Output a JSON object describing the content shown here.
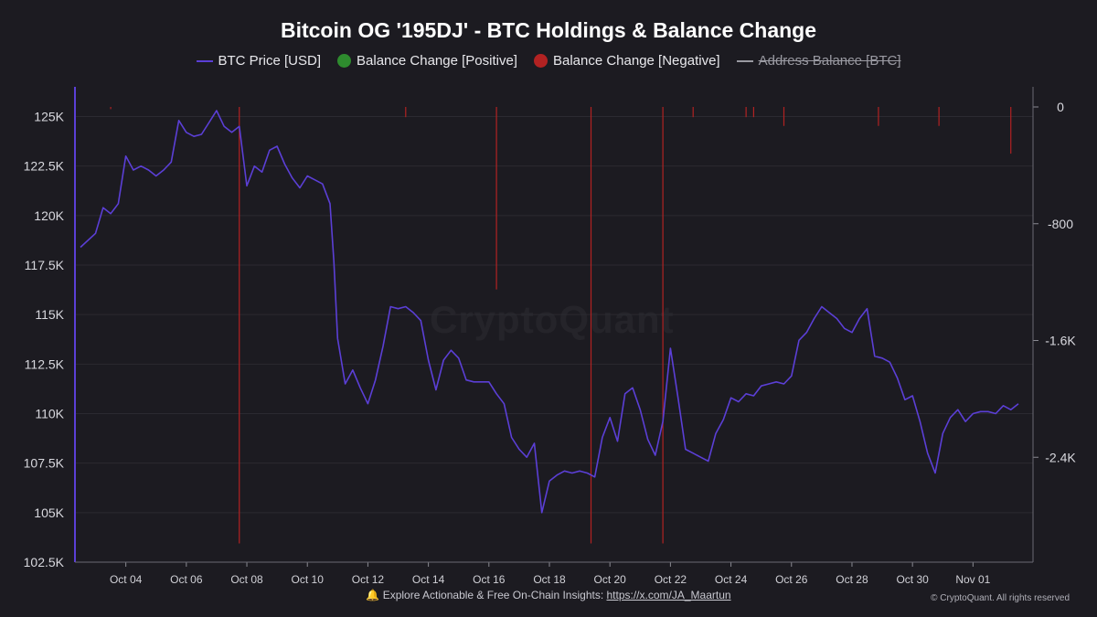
{
  "chart_data": {
    "type": "line",
    "title": "Bitcoin OG '195DJ' - BTC Holdings & Balance Change",
    "legend": [
      {
        "name": "BTC Price [USD]",
        "color": "#5b3fd6",
        "style": "line",
        "enabled": true
      },
      {
        "name": "Balance Change [Positive]",
        "color": "#2e8b2e",
        "style": "dot",
        "enabled": true
      },
      {
        "name": "Balance Change [Negative]",
        "color": "#b22222",
        "style": "dot",
        "enabled": true
      },
      {
        "name": "Address Balance [BTC]",
        "color": "#9a9aa2",
        "style": "line",
        "enabled": false
      }
    ],
    "legend_position": "top-center",
    "x_start": "2025-10-02T12:00",
    "x_end": "2025-11-02T12:00",
    "x_ticks": [
      "Oct 04",
      "Oct 06",
      "Oct 08",
      "Oct 10",
      "Oct 12",
      "Oct 14",
      "Oct 16",
      "Oct 18",
      "Oct 20",
      "Oct 22",
      "Oct 24",
      "Oct 26",
      "Oct 28",
      "Oct 30",
      "Nov 01"
    ],
    "y_left": {
      "ticks": [
        "125K",
        "122.5K",
        "120K",
        "117.5K",
        "115K",
        "112.5K",
        "110K",
        "107.5K",
        "105K",
        "102.5K"
      ],
      "range": [
        102500,
        126500
      ]
    },
    "y_right": {
      "ticks": [
        "0",
        "-800",
        "-1.6K",
        "-2.4K"
      ],
      "range": [
        -3200,
        0
      ]
    },
    "grid": true,
    "series": [
      {
        "name": "BTC Price [USD]",
        "axis": "left",
        "points": [
          [
            "2025-10-02T12:00",
            118400
          ],
          [
            "2025-10-03T00:00",
            119100
          ],
          [
            "2025-10-03T06:00",
            120400
          ],
          [
            "2025-10-03T12:00",
            120100
          ],
          [
            "2025-10-03T18:00",
            120600
          ],
          [
            "2025-10-04T00:00",
            123000
          ],
          [
            "2025-10-04T06:00",
            122300
          ],
          [
            "2025-10-04T12:00",
            122500
          ],
          [
            "2025-10-04T18:00",
            122300
          ],
          [
            "2025-10-05T00:00",
            122000
          ],
          [
            "2025-10-05T06:00",
            122300
          ],
          [
            "2025-10-05T12:00",
            122700
          ],
          [
            "2025-10-05T18:00",
            124800
          ],
          [
            "2025-10-06T00:00",
            124200
          ],
          [
            "2025-10-06T06:00",
            124000
          ],
          [
            "2025-10-06T12:00",
            124100
          ],
          [
            "2025-10-06T18:00",
            124700
          ],
          [
            "2025-10-07T00:00",
            125300
          ],
          [
            "2025-10-07T06:00",
            124500
          ],
          [
            "2025-10-07T12:00",
            124200
          ],
          [
            "2025-10-07T18:00",
            124500
          ],
          [
            "2025-10-08T00:00",
            121500
          ],
          [
            "2025-10-08T06:00",
            122500
          ],
          [
            "2025-10-08T12:00",
            122200
          ],
          [
            "2025-10-08T18:00",
            123300
          ],
          [
            "2025-10-09T00:00",
            123500
          ],
          [
            "2025-10-09T06:00",
            122600
          ],
          [
            "2025-10-09T12:00",
            121900
          ],
          [
            "2025-10-09T18:00",
            121400
          ],
          [
            "2025-10-10T00:00",
            122000
          ],
          [
            "2025-10-10T06:00",
            121800
          ],
          [
            "2025-10-10T12:00",
            121600
          ],
          [
            "2025-10-10T18:00",
            120600
          ],
          [
            "2025-10-10T21:00",
            117700
          ],
          [
            "2025-10-11T00:00",
            113800
          ],
          [
            "2025-10-11T06:00",
            111500
          ],
          [
            "2025-10-11T12:00",
            112200
          ],
          [
            "2025-10-11T18:00",
            111300
          ],
          [
            "2025-10-12T00:00",
            110500
          ],
          [
            "2025-10-12T06:00",
            111700
          ],
          [
            "2025-10-12T12:00",
            113400
          ],
          [
            "2025-10-12T18:00",
            115400
          ],
          [
            "2025-10-13T00:00",
            115300
          ],
          [
            "2025-10-13T06:00",
            115400
          ],
          [
            "2025-10-13T12:00",
            115100
          ],
          [
            "2025-10-13T18:00",
            114700
          ],
          [
            "2025-10-14T00:00",
            112700
          ],
          [
            "2025-10-14T06:00",
            111200
          ],
          [
            "2025-10-14T12:00",
            112700
          ],
          [
            "2025-10-14T18:00",
            113200
          ],
          [
            "2025-10-15T00:00",
            112800
          ],
          [
            "2025-10-15T06:00",
            111700
          ],
          [
            "2025-10-15T12:00",
            111600
          ],
          [
            "2025-10-15T18:00",
            111600
          ],
          [
            "2025-10-16T00:00",
            111600
          ],
          [
            "2025-10-16T06:00",
            111000
          ],
          [
            "2025-10-16T12:00",
            110500
          ],
          [
            "2025-10-16T18:00",
            108800
          ],
          [
            "2025-10-17T00:00",
            108200
          ],
          [
            "2025-10-17T06:00",
            107800
          ],
          [
            "2025-10-17T12:00",
            108500
          ],
          [
            "2025-10-17T18:00",
            105000
          ],
          [
            "2025-10-18T00:00",
            106600
          ],
          [
            "2025-10-18T06:00",
            106900
          ],
          [
            "2025-10-18T12:00",
            107100
          ],
          [
            "2025-10-18T18:00",
            107000
          ],
          [
            "2025-10-19T00:00",
            107100
          ],
          [
            "2025-10-19T06:00",
            107000
          ],
          [
            "2025-10-19T12:00",
            106800
          ],
          [
            "2025-10-19T18:00",
            108800
          ],
          [
            "2025-10-20T00:00",
            109800
          ],
          [
            "2025-10-20T06:00",
            108600
          ],
          [
            "2025-10-20T12:00",
            111000
          ],
          [
            "2025-10-20T18:00",
            111300
          ],
          [
            "2025-10-21T00:00",
            110200
          ],
          [
            "2025-10-21T06:00",
            108700
          ],
          [
            "2025-10-21T12:00",
            107900
          ],
          [
            "2025-10-21T18:00",
            109600
          ],
          [
            "2025-10-22T00:00",
            113300
          ],
          [
            "2025-10-22T06:00",
            110800
          ],
          [
            "2025-10-22T12:00",
            108200
          ],
          [
            "2025-10-22T18:00",
            108000
          ],
          [
            "2025-10-23T00:00",
            107800
          ],
          [
            "2025-10-23T06:00",
            107600
          ],
          [
            "2025-10-23T12:00",
            109000
          ],
          [
            "2025-10-23T18:00",
            109700
          ],
          [
            "2025-10-24T00:00",
            110800
          ],
          [
            "2025-10-24T06:00",
            110600
          ],
          [
            "2025-10-24T12:00",
            111000
          ],
          [
            "2025-10-24T18:00",
            110900
          ],
          [
            "2025-10-25T00:00",
            111400
          ],
          [
            "2025-10-25T06:00",
            111500
          ],
          [
            "2025-10-25T12:00",
            111600
          ],
          [
            "2025-10-25T18:00",
            111500
          ],
          [
            "2025-10-26T00:00",
            111900
          ],
          [
            "2025-10-26T06:00",
            113700
          ],
          [
            "2025-10-26T12:00",
            114100
          ],
          [
            "2025-10-26T18:00",
            114800
          ],
          [
            "2025-10-27T00:00",
            115400
          ],
          [
            "2025-10-27T06:00",
            115100
          ],
          [
            "2025-10-27T12:00",
            114800
          ],
          [
            "2025-10-27T18:00",
            114300
          ],
          [
            "2025-10-28T00:00",
            114100
          ],
          [
            "2025-10-28T06:00",
            114800
          ],
          [
            "2025-10-28T12:00",
            115300
          ],
          [
            "2025-10-28T18:00",
            112900
          ],
          [
            "2025-10-29T00:00",
            112800
          ],
          [
            "2025-10-29T06:00",
            112600
          ],
          [
            "2025-10-29T12:00",
            111800
          ],
          [
            "2025-10-29T18:00",
            110700
          ],
          [
            "2025-10-30T00:00",
            110900
          ],
          [
            "2025-10-30T06:00",
            109600
          ],
          [
            "2025-10-30T12:00",
            108000
          ],
          [
            "2025-10-30T18:00",
            107000
          ],
          [
            "2025-10-31T00:00",
            109000
          ],
          [
            "2025-10-31T06:00",
            109800
          ],
          [
            "2025-10-31T12:00",
            110200
          ],
          [
            "2025-10-31T18:00",
            109600
          ],
          [
            "2025-11-01T00:00",
            110000
          ],
          [
            "2025-11-01T06:00",
            110100
          ],
          [
            "2025-11-01T12:00",
            110100
          ],
          [
            "2025-11-01T18:00",
            110000
          ],
          [
            "2025-11-02T00:00",
            110400
          ],
          [
            "2025-11-02T06:00",
            110200
          ],
          [
            "2025-11-02T12:00",
            110500
          ]
        ]
      },
      {
        "name": "Balance Change [Negative]",
        "axis": "right",
        "type": "bar",
        "points": [
          [
            "2025-10-03T12:00",
            -15
          ],
          [
            "2025-10-07T18:00",
            -2990
          ],
          [
            "2025-10-13T06:00",
            -70
          ],
          [
            "2025-10-16T06:00",
            -1250
          ],
          [
            "2025-10-19T09:00",
            -2990
          ],
          [
            "2025-10-21T18:00",
            -2990
          ],
          [
            "2025-10-22T18:00",
            -70
          ],
          [
            "2025-10-24T12:00",
            -70
          ],
          [
            "2025-10-24T18:00",
            -70
          ],
          [
            "2025-10-25T18:00",
            -130
          ],
          [
            "2025-10-28T21:00",
            -130
          ],
          [
            "2025-10-30T21:00",
            -130
          ],
          [
            "2025-11-02T06:00",
            -320
          ]
        ]
      }
    ]
  },
  "watermark": "CryptoQuant",
  "footer": {
    "prefix": "🔔 Explore Actionable & Free On-Chain Insights: ",
    "link": "https://x.com/JA_Maartun"
  },
  "copyright": "© CryptoQuant. All rights reserved"
}
